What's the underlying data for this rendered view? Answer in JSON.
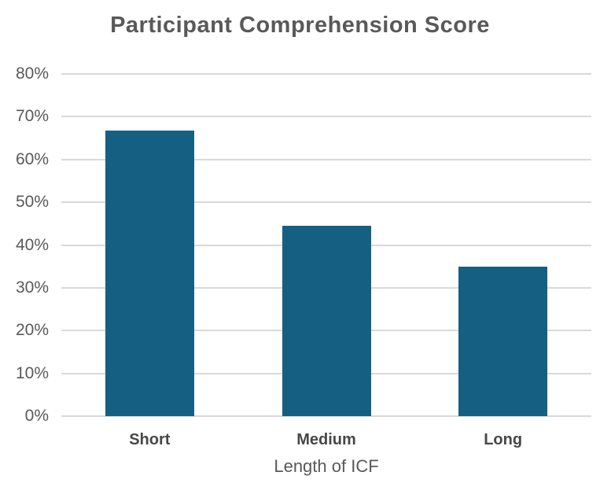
{
  "chart_data": {
    "type": "bar",
    "title": "Participant Comprehension Score",
    "xlabel": "Length of ICF",
    "ylabel": "",
    "categories": [
      "Short",
      "Medium",
      "Long"
    ],
    "values": [
      66.7,
      44.5,
      35
    ],
    "ylim": [
      0,
      80
    ],
    "ytick_step": 10,
    "ytick_suffix": "%",
    "grid": "horizontal",
    "legend_position": "none",
    "bar_color": "#156082",
    "gridline_color": "#d9d9d9",
    "title_color": "#595959",
    "tick_label_color": "#595959",
    "category_label_color": "#474747"
  }
}
